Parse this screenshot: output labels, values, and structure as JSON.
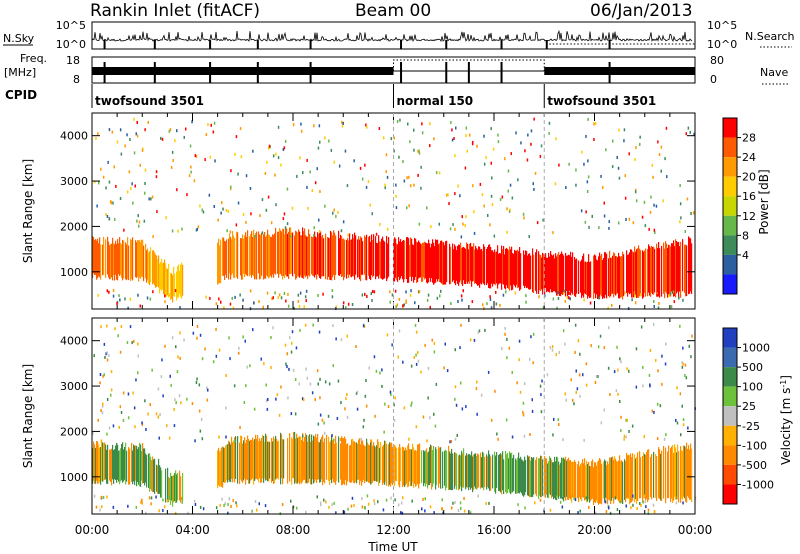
{
  "header": {
    "station": "Rankin Inlet (fitACF)",
    "beam": "Beam 00",
    "date": "06/Jan/2013"
  },
  "panels": {
    "nsky": {
      "label": "N.Sky",
      "left_ticks": [
        "10^5",
        "10^0"
      ],
      "right_ticks": [
        "10^5",
        "10^0"
      ],
      "right_label": "N.Search"
    },
    "freq": {
      "label_top": "Freq.",
      "label_unit": "[MHz]",
      "left_ticks": [
        "18",
        "8"
      ],
      "right_ticks": [
        "80",
        "0"
      ],
      "right_label": "Nave"
    },
    "cpid": {
      "label": "CPID",
      "segments": [
        {
          "start": 0.0,
          "end": 12.0,
          "name": "twofsound 3501"
        },
        {
          "start": 12.0,
          "end": 18.0,
          "name": "normal 150"
        },
        {
          "start": 18.0,
          "end": 24.0,
          "name": "twofsound 3501"
        }
      ]
    }
  },
  "chart_data": [
    {
      "type": "heatmap",
      "quantity": "Power",
      "ylabel": "Slant Range [km]",
      "ylim": [
        180,
        4500
      ],
      "yticks": [
        "1000",
        "2000",
        "3000",
        "4000"
      ],
      "xlim": [
        "00:00",
        "24:00"
      ],
      "colorbar": {
        "label": "Power [dB]",
        "ticks": [
          "28",
          "24",
          "20",
          "16",
          "12",
          "8",
          "4"
        ],
        "colors": [
          "#ff0000",
          "#ff5a00",
          "#ff9a00",
          "#ffcc00",
          "#c8d600",
          "#66b84a",
          "#3d8a5a",
          "#2c5fa0",
          "#1a1aff"
        ]
      },
      "main_echo_band": [
        {
          "t": 0.0,
          "r_low": 900,
          "r_high": 1700,
          "val": 24
        },
        {
          "t": 2.0,
          "r_low": 850,
          "r_high": 1650,
          "val": 20
        },
        {
          "t": 3.2,
          "r_low": 400,
          "r_high": 1000,
          "val": 16
        },
        {
          "t": 5.5,
          "r_low": 900,
          "r_high": 1800,
          "val": 22
        },
        {
          "t": 8.0,
          "r_low": 900,
          "r_high": 1900,
          "val": 24
        },
        {
          "t": 12.0,
          "r_low": 850,
          "r_high": 1700,
          "val": 28
        },
        {
          "t": 16.0,
          "r_low": 700,
          "r_high": 1500,
          "val": 28
        },
        {
          "t": 20.0,
          "r_low": 450,
          "r_high": 1300,
          "val": 28
        },
        {
          "t": 24.0,
          "r_low": 500,
          "r_high": 1700,
          "val": 26
        }
      ]
    },
    {
      "type": "heatmap",
      "quantity": "Velocity",
      "ylabel": "Slant Range [km]",
      "ylim": [
        180,
        4500
      ],
      "yticks": [
        "1000",
        "2000",
        "3000",
        "4000"
      ],
      "xlabel": "Time UT",
      "xticks": [
        "00:00",
        "04:00",
        "08:00",
        "12:00",
        "16:00",
        "20:00",
        "00:00"
      ],
      "colorbar": {
        "label": "Velocity [m s^-1]",
        "ticks": [
          "1000",
          "500",
          "100",
          "25",
          "-25",
          "-100",
          "-500",
          "-1000"
        ],
        "colors": [
          "#2040c0",
          "#3a6ab0",
          "#3c8a4a",
          "#6cc23a",
          "#c0c0c0",
          "#ffb000",
          "#ff8a00",
          "#ff4a00",
          "#ff0000"
        ]
      },
      "main_echo_band": [
        {
          "t": 0.0,
          "r_low": 900,
          "r_high": 1700,
          "val": -100
        },
        {
          "t": 2.0,
          "r_low": 850,
          "r_high": 1650,
          "val": 25
        },
        {
          "t": 3.2,
          "r_low": 400,
          "r_high": 1000,
          "val": 100
        },
        {
          "t": 5.5,
          "r_low": 900,
          "r_high": 1800,
          "val": -100
        },
        {
          "t": 8.0,
          "r_low": 900,
          "r_high": 1900,
          "val": -100
        },
        {
          "t": 12.0,
          "r_low": 850,
          "r_high": 1700,
          "val": -100
        },
        {
          "t": 16.0,
          "r_low": 700,
          "r_high": 1500,
          "val": 100
        },
        {
          "t": 20.0,
          "r_low": 450,
          "r_high": 1300,
          "val": -100
        },
        {
          "t": 24.0,
          "r_low": 500,
          "r_high": 1700,
          "val": -100
        }
      ]
    }
  ]
}
